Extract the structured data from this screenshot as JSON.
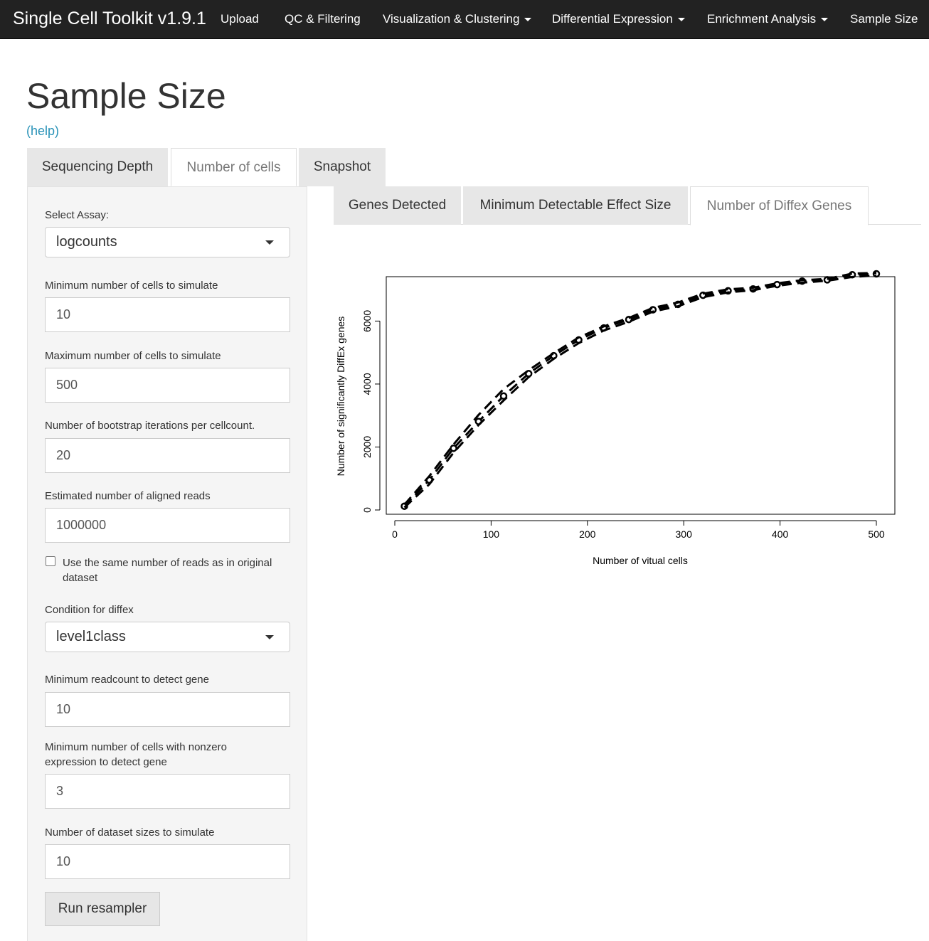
{
  "navbar": {
    "brand": "Single Cell Toolkit v1.9.1",
    "items": [
      {
        "label": "Upload",
        "dropdown": false
      },
      {
        "label": "QC & Filtering",
        "dropdown": false
      },
      {
        "label": "Visualization & Clustering",
        "dropdown": true
      },
      {
        "label": "Differential Expression",
        "dropdown": true
      },
      {
        "label": "Enrichment Analysis",
        "dropdown": true
      },
      {
        "label": "Sample Size",
        "dropdown": false
      }
    ]
  },
  "page": {
    "title": "Sample Size",
    "help": "(help)"
  },
  "main_tabs": [
    {
      "label": "Sequencing Depth",
      "active": false
    },
    {
      "label": "Number of cells",
      "active": true
    },
    {
      "label": "Snapshot",
      "active": false
    }
  ],
  "sidebar": {
    "assay_label": "Select Assay:",
    "assay_value": "logcounts",
    "min_cells_label": "Minimum number of cells to simulate",
    "min_cells_value": "10",
    "max_cells_label": "Maximum number of cells to simulate",
    "max_cells_value": "500",
    "bootstrap_label": "Number of bootstrap iterations per cellcount.",
    "bootstrap_value": "20",
    "reads_label": "Estimated number of aligned reads",
    "reads_value": "1000000",
    "same_reads_label": "Use the same number of reads as in original dataset",
    "same_reads_checked": false,
    "condition_label": "Condition for diffex",
    "condition_value": "level1class",
    "min_readcount_label": "Minimum readcount to detect gene",
    "min_readcount_value": "10",
    "min_nonzero_label": "Minimum number of cells with nonzero expression to detect gene",
    "min_nonzero_value": "3",
    "dataset_sizes_label": "Number of dataset sizes to simulate",
    "dataset_sizes_value": "10",
    "run_button": "Run resampler"
  },
  "sub_tabs": [
    {
      "label": "Genes Detected",
      "active": false
    },
    {
      "label": "Minimum Detectable Effect Size",
      "active": false
    },
    {
      "label": "Number of Diffex Genes",
      "active": true
    }
  ],
  "chart_data": {
    "type": "line",
    "title": "",
    "xlabel": "Number of vitual cells",
    "ylabel": "Number of significantly DiffEx genes",
    "xlim": [
      0,
      500
    ],
    "ylim": [
      0,
      7500
    ],
    "xticks": [
      0,
      100,
      200,
      300,
      400,
      500
    ],
    "yticks": [
      0,
      2000,
      4000,
      6000
    ],
    "grid": false,
    "legend": "none",
    "x": [
      10,
      36,
      61,
      87,
      113,
      139,
      165,
      191,
      217,
      243,
      268,
      294,
      320,
      346,
      372,
      397,
      423,
      449,
      475,
      500
    ],
    "series": [
      {
        "values": [
          120,
          950,
          1960,
          2810,
          3620,
          4330,
          4900,
          5400,
          5780,
          6050,
          6360,
          6530,
          6820,
          6960,
          7020,
          7160,
          7270,
          7310,
          7470,
          7500
        ],
        "line": "dashed",
        "marker": "open-circle"
      },
      {
        "values": [
          80,
          820,
          1820,
          2700,
          3480,
          4220,
          4800,
          5300,
          5700,
          5980,
          6300,
          6470,
          6760,
          6910,
          6980,
          7120,
          7220,
          7280,
          7400,
          7450
        ],
        "line": "dashed",
        "marker": "none"
      },
      {
        "values": [
          170,
          1080,
          2080,
          3020,
          3840,
          4440,
          4980,
          5480,
          5830,
          6100,
          6420,
          6590,
          6870,
          7010,
          7060,
          7200,
          7300,
          7340,
          7510,
          7530
        ],
        "line": "dashed",
        "marker": "none"
      }
    ]
  }
}
